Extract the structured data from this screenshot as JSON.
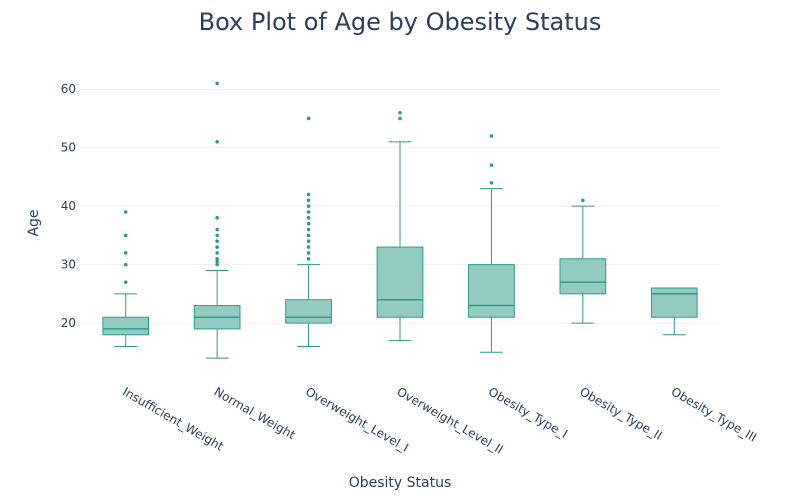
{
  "chart_data": {
    "type": "box",
    "title": "Box Plot of Age by Obesity Status",
    "xlabel": "Obesity Status",
    "ylabel": "Age",
    "ylim": [
      13,
      65
    ],
    "yticks": [
      20,
      30,
      40,
      50,
      60
    ],
    "grid": true,
    "colors": {
      "fill": "#93cbc3",
      "stroke": "#2c9d88",
      "text": "#2a3f5f",
      "grid": "#ebf0f8"
    },
    "categories": [
      "Insufficient_Weight",
      "Normal_Weight",
      "Overweight_Level_I",
      "Overweight_Level_II",
      "Obesity_Type_I",
      "Obesity_Type_II",
      "Obesity_Type_III"
    ],
    "boxes": [
      {
        "min": 16,
        "q1": 18,
        "median": 19,
        "q3": 21,
        "max": 25,
        "outliers": [
          27,
          30,
          32,
          35,
          39
        ]
      },
      {
        "min": 14,
        "q1": 19,
        "median": 21,
        "q3": 23,
        "max": 29,
        "outliers": [
          30,
          30.5,
          31,
          32,
          33,
          34,
          35,
          36,
          38,
          51,
          61
        ]
      },
      {
        "min": 16,
        "q1": 20,
        "median": 21,
        "q3": 24,
        "max": 30,
        "outliers": [
          31,
          32,
          33,
          34,
          35,
          36,
          37,
          38,
          39,
          40,
          41,
          42,
          55
        ]
      },
      {
        "min": 17,
        "q1": 21,
        "median": 24,
        "q3": 33,
        "max": 51,
        "outliers": [
          55,
          56
        ]
      },
      {
        "min": 15,
        "q1": 21,
        "median": 23,
        "q3": 30,
        "max": 43,
        "outliers": [
          44,
          47,
          52
        ]
      },
      {
        "min": 20,
        "q1": 25,
        "median": 27,
        "q3": 31,
        "max": 40,
        "outliers": [
          41
        ]
      },
      {
        "min": 18,
        "q1": 21,
        "median": 25,
        "q3": 26,
        "max": 26,
        "outliers": []
      }
    ]
  }
}
